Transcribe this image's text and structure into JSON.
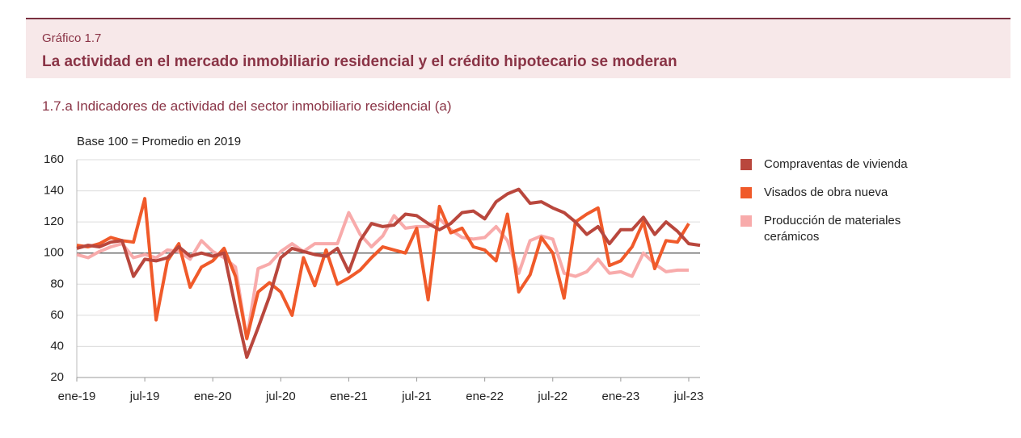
{
  "header": {
    "label": "Gráfico 1.7",
    "title": "La actividad en el mercado inmobiliario residencial y el crédito hipotecario se moderan"
  },
  "chart_data": {
    "type": "line",
    "title": "1.7.a  Indicadores de actividad del sector inmobiliario residencial (a)",
    "y_label": "Base 100 = Promedio en 2019",
    "categories": [
      "ene-19",
      null,
      null,
      null,
      null,
      null,
      "jul-19",
      null,
      null,
      null,
      null,
      null,
      "ene-20",
      null,
      null,
      null,
      null,
      null,
      "jul-20",
      null,
      null,
      null,
      null,
      null,
      "ene-21",
      null,
      null,
      null,
      null,
      null,
      "jul-21",
      null,
      null,
      null,
      null,
      null,
      "ene-22",
      null,
      null,
      null,
      null,
      null,
      "jul-22",
      null,
      null,
      null,
      null,
      null,
      "ene-23",
      null,
      null,
      null,
      null,
      null,
      "jul-23",
      null
    ],
    "series": [
      {
        "name": "Compraventas de vivienda",
        "color": "#b9473d",
        "values": [
          103,
          105,
          104,
          107,
          108,
          85,
          96,
          95,
          97,
          104,
          98,
          100,
          98,
          100,
          65,
          33,
          52,
          72,
          97,
          103,
          101,
          99,
          98,
          103,
          88,
          108,
          119,
          117,
          118,
          125,
          124,
          119,
          115,
          119,
          126,
          127,
          122,
          133,
          138,
          141,
          132,
          133,
          129,
          126,
          120,
          112,
          117,
          106,
          115,
          115,
          123,
          112,
          120,
          114,
          106,
          105
        ]
      },
      {
        "name": "Visados de obra nueva",
        "color": "#f05a2a",
        "values": [
          105,
          104,
          106,
          110,
          108,
          107,
          135,
          57,
          95,
          106,
          78,
          91,
          95,
          103,
          85,
          45,
          75,
          81,
          75,
          60,
          97,
          79,
          102,
          80,
          84,
          89,
          97,
          104,
          102,
          100,
          116,
          70,
          130,
          113,
          116,
          104,
          102,
          95,
          125,
          75,
          86,
          110,
          100,
          71,
          120,
          125,
          129,
          92,
          95,
          104,
          120,
          90,
          108,
          107,
          119,
          null
        ]
      },
      {
        "name": "Producción de materiales cerámicos",
        "color": "#f8abab",
        "values": [
          99,
          97,
          101,
          104,
          106,
          97,
          99,
          97,
          102,
          101,
          96,
          108,
          101,
          97,
          91,
          45,
          90,
          93,
          101,
          106,
          101,
          106,
          106,
          106,
          126,
          112,
          104,
          111,
          124,
          116,
          117,
          117,
          122,
          115,
          110,
          109,
          110,
          117,
          108,
          87,
          108,
          111,
          109,
          87,
          85,
          88,
          96,
          87,
          88,
          85,
          100,
          93,
          88,
          89,
          89,
          null
        ]
      }
    ],
    "ylim": [
      20,
      160
    ],
    "yticks": [
      20,
      40,
      60,
      80,
      100,
      120,
      140,
      160
    ],
    "grid": true,
    "reference_line": 100,
    "legend": "right"
  }
}
